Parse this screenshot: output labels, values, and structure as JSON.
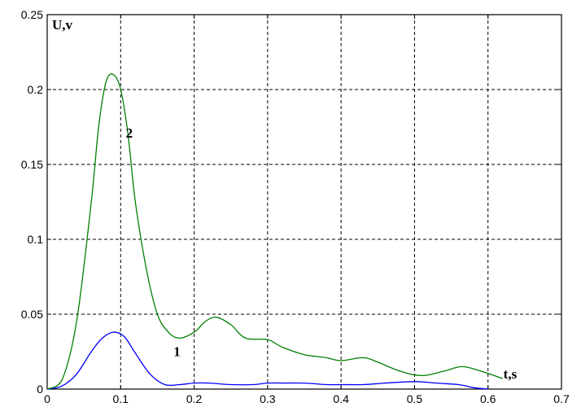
{
  "chart_data": {
    "type": "line",
    "xlabel": "t,s",
    "ylabel": "U,v",
    "xlim": [
      0,
      0.7
    ],
    "ylim": [
      0,
      0.25
    ],
    "grid": true,
    "x_ticks": [
      "0",
      "0.1",
      "0.2",
      "0.3",
      "0.4",
      "0.5",
      "0.6",
      "0.7"
    ],
    "y_ticks": [
      "0",
      "0.05",
      "0.1",
      "0.15",
      "0.2",
      "0.25"
    ],
    "series": [
      {
        "name": "1",
        "color": "#0000ff",
        "x": [
          0,
          0.02,
          0.04,
          0.06,
          0.075,
          0.09,
          0.105,
          0.12,
          0.14,
          0.16,
          0.18,
          0.2,
          0.22,
          0.25,
          0.28,
          0.3,
          0.32,
          0.35,
          0.38,
          0.4,
          0.43,
          0.46,
          0.5,
          0.53,
          0.56,
          0.58,
          0.6
        ],
        "values": [
          0,
          0.002,
          0.01,
          0.025,
          0.034,
          0.038,
          0.035,
          0.024,
          0.01,
          0.003,
          0.003,
          0.004,
          0.004,
          0.003,
          0.003,
          0.004,
          0.004,
          0.004,
          0.003,
          0.003,
          0.003,
          0.004,
          0.005,
          0.004,
          0.003,
          0.001,
          0.0
        ]
      },
      {
        "name": "2",
        "color": "#008000",
        "x": [
          0,
          0.02,
          0.04,
          0.06,
          0.07,
          0.08,
          0.09,
          0.1,
          0.11,
          0.12,
          0.135,
          0.15,
          0.165,
          0.18,
          0.2,
          0.215,
          0.23,
          0.25,
          0.27,
          0.3,
          0.32,
          0.35,
          0.38,
          0.4,
          0.43,
          0.45,
          0.48,
          0.51,
          0.54,
          0.565,
          0.59,
          0.62
        ],
        "values": [
          0,
          0.006,
          0.045,
          0.125,
          0.175,
          0.205,
          0.21,
          0.2,
          0.17,
          0.125,
          0.08,
          0.05,
          0.038,
          0.034,
          0.038,
          0.045,
          0.048,
          0.043,
          0.034,
          0.033,
          0.028,
          0.023,
          0.021,
          0.019,
          0.021,
          0.018,
          0.012,
          0.009,
          0.012,
          0.015,
          0.012,
          0.007
        ]
      }
    ]
  }
}
